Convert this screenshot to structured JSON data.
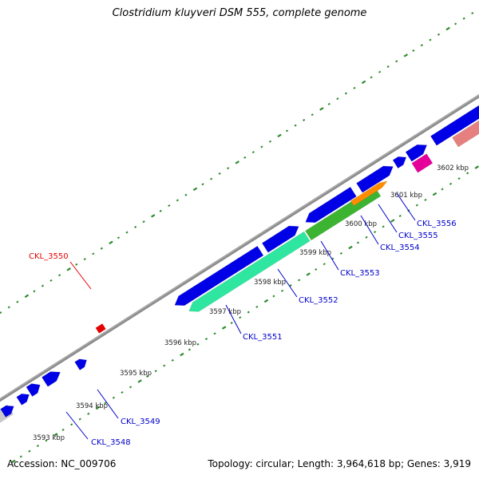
{
  "title": "Clostridium kluyveri DSM 555, complete genome",
  "footer": {
    "accession": "Accession: NC_009706",
    "topology": "Topology: circular; Length: 3,964,618 bp; Genes: 3,919"
  },
  "colors": {
    "backbone": "#8c8c8c",
    "tick": "#2e8b2e",
    "cds_forward": "#0000e6",
    "cds_reverse_green": "#2ee6a0",
    "cds_lime": "#3cb432",
    "cds_orange": "#ff8c00",
    "cds_magenta": "#e6009a",
    "cds_salmon": "#e68080",
    "cds_grey": "#c8c8c8",
    "label_default": "#0000cc",
    "label_highlight": "#e60000"
  },
  "position_labels": [
    "3593 kbp",
    "3594 kbp",
    "3595 kbp",
    "3596 kbp",
    "3597 kbp",
    "3598 kbp",
    "3599 kbp",
    "3600 kbp",
    "3601 kbp",
    "3602 kbp"
  ],
  "gene_labels": [
    {
      "id": "CKL_3548",
      "text": "CKL_3548",
      "highlight": false
    },
    {
      "id": "CKL_3549",
      "text": "CKL_3549",
      "highlight": false
    },
    {
      "id": "CKL_3550",
      "text": "CKL_3550",
      "highlight": true
    },
    {
      "id": "CKL_3551",
      "text": "CKL_3551",
      "highlight": false
    },
    {
      "id": "CKL_3552",
      "text": "CKL_3552",
      "highlight": false
    },
    {
      "id": "CKL_3553",
      "text": "CKL_3553",
      "highlight": false
    },
    {
      "id": "CKL_3554",
      "text": "CKL_3554",
      "highlight": false
    },
    {
      "id": "CKL_3555",
      "text": "CKL_3555",
      "highlight": false
    },
    {
      "id": "CKL_3556",
      "text": "CKL_3556",
      "highlight": false
    }
  ]
}
